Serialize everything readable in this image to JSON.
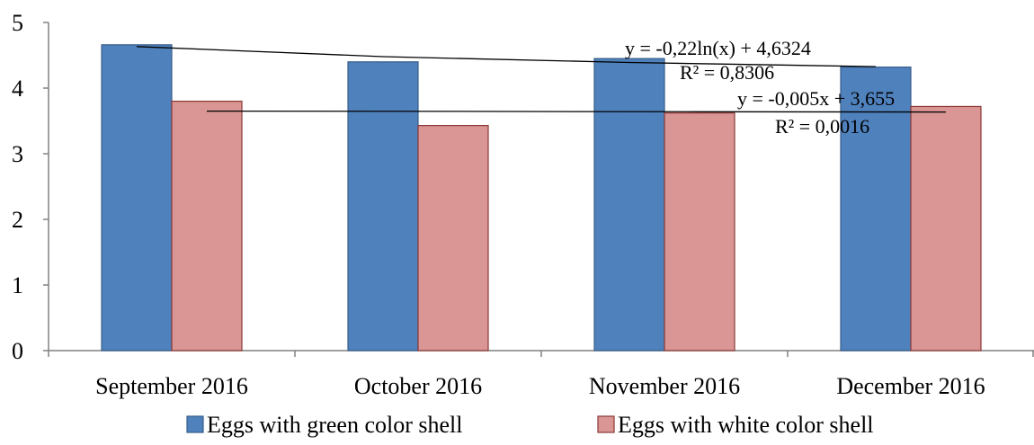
{
  "chart_data": {
    "type": "bar",
    "categories": [
      "September 2016",
      "October 2016",
      "November 2016",
      "December 2016"
    ],
    "series": [
      {
        "name": "Eggs with green color shell",
        "color": "#4f81bd",
        "stroke": "#385d8a",
        "values": [
          4.66,
          4.4,
          4.45,
          4.32
        ]
      },
      {
        "name": "Eggs with white color shell",
        "color": "#d99694",
        "stroke": "#8c3836",
        "values": [
          3.8,
          3.43,
          3.62,
          3.72
        ]
      }
    ],
    "ylim": [
      0,
      5
    ],
    "yticks": [
      "0",
      "1",
      "2",
      "3",
      "4",
      "5"
    ],
    "legend_position": "bottom",
    "grid": false,
    "trendlines": [
      {
        "series": "Eggs with green color shell",
        "kind": "logarithmic",
        "a": -0.22,
        "b": 4.6324,
        "equation": "y = -0,22ln(x) + 4,6324",
        "r2": "R² = 0,8306"
      },
      {
        "series": "Eggs with white color shell",
        "kind": "linear",
        "a": -0.005,
        "b": 3.655,
        "equation": "y = -0,005x + 3,655",
        "r2": "R² = 0,0016"
      }
    ]
  }
}
